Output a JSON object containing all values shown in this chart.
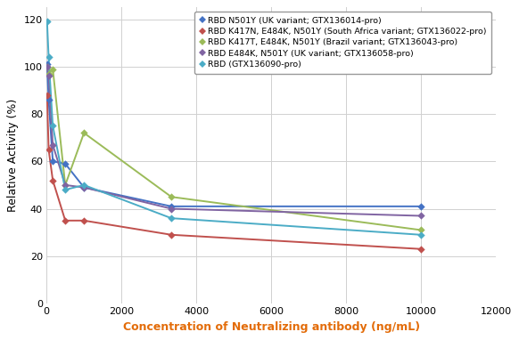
{
  "title": "",
  "xlabel": "Concentration of Neutralizing antibody (ng/mL)",
  "ylabel": "Relative Activity (%)",
  "xlim": [
    0,
    12000
  ],
  "ylim": [
    0,
    125
  ],
  "xticks": [
    0,
    2000,
    4000,
    6000,
    8000,
    10000,
    12000
  ],
  "yticks": [
    0,
    20,
    40,
    60,
    80,
    100,
    120
  ],
  "series": [
    {
      "label": "RBD N501Y (UK variant; GTX136014-pro)",
      "color": "#4472C4",
      "scatter_x": [
        14,
        56,
        167,
        500,
        1000,
        3333,
        10000
      ],
      "scatter_y": [
        101,
        86,
        60,
        59,
        49,
        41,
        41
      ]
    },
    {
      "label": "RBD K417N, E484K, N501Y (South Africa variant; GTX136022-pro)",
      "color": "#C0504D",
      "scatter_x": [
        14,
        56,
        167,
        500,
        1000,
        3333,
        10000
      ],
      "scatter_y": [
        88,
        65,
        52,
        35,
        35,
        29,
        23
      ]
    },
    {
      "label": "RBD K417T, E484K, N501Y (Brazil variant; GTX136043-pro)",
      "color": "#9BBB59",
      "scatter_x": [
        14,
        56,
        167,
        500,
        1000,
        3333,
        10000
      ],
      "scatter_y": [
        100,
        97,
        99,
        50,
        72,
        45,
        31
      ]
    },
    {
      "label": "RBD E484K, N501Y (UK variant; GTX136058-pro)",
      "color": "#8064A2",
      "scatter_x": [
        14,
        56,
        167,
        500,
        1000,
        3333,
        10000
      ],
      "scatter_y": [
        100,
        96,
        67,
        50,
        49,
        40,
        37
      ]
    },
    {
      "label": "RBD (GTX136090-pro)",
      "color": "#4BACC6",
      "scatter_x": [
        14,
        56,
        167,
        500,
        1000,
        3333,
        10000
      ],
      "scatter_y": [
        119,
        104,
        75,
        48,
        50,
        36,
        29
      ]
    }
  ],
  "background_color": "#ffffff",
  "grid_color": "#d0d0d0",
  "xlabel_color": "#E36C09",
  "ylabel_color": "#000000",
  "tick_fontsize": 8,
  "label_fontsize": 9,
  "legend_fontsize": 6.8,
  "marker_size": 18,
  "line_width": 1.4
}
